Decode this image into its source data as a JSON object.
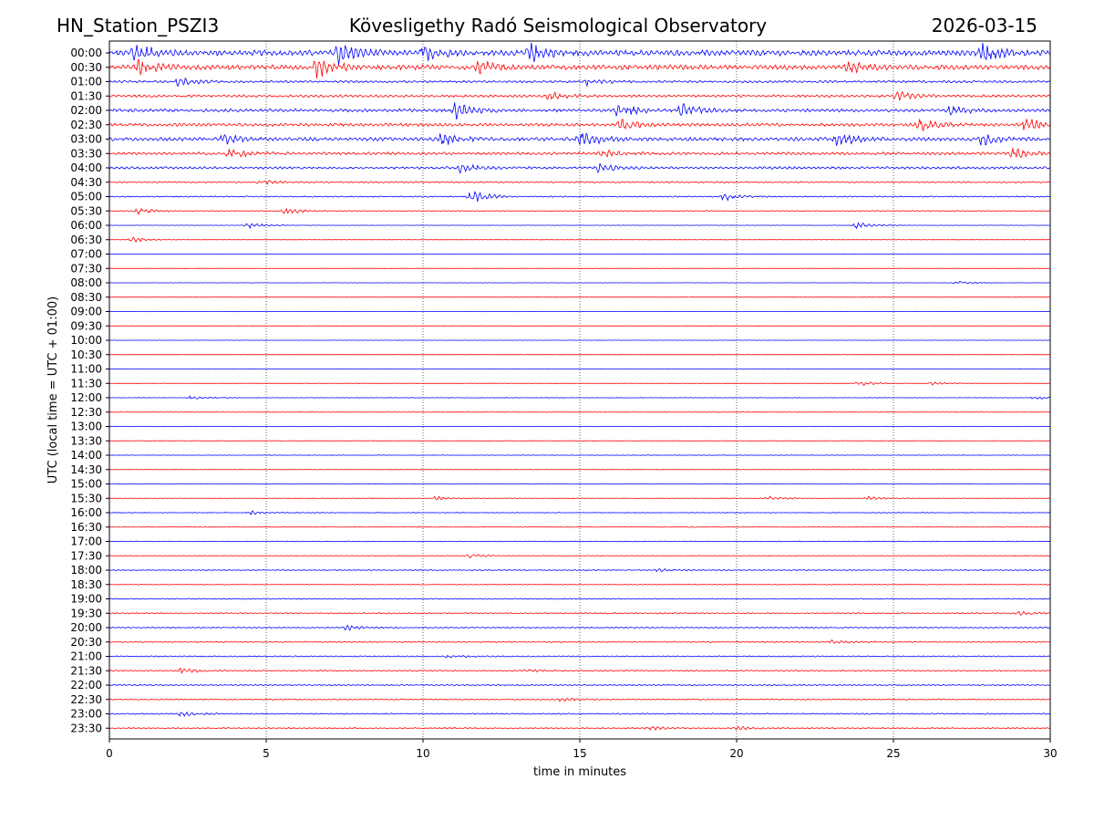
{
  "header": {
    "station": "HN_Station_PSZI3",
    "observatory": "Kövesligethy Radó Seismological Observatory",
    "date": "2026-03-15"
  },
  "chart_data": {
    "type": "line",
    "subtype": "seismic helicorder",
    "xlabel": "time in minutes",
    "ylabel": "UTC (local time = UTC + 01:00)",
    "xlim": [
      0,
      30
    ],
    "xticks": [
      0,
      5,
      10,
      15,
      20,
      25,
      30
    ],
    "vertical_grid": true,
    "series_colors": [
      "#0000ff",
      "#ff0000"
    ],
    "rows": [
      {
        "label": "00:00",
        "level": 1.0,
        "events": [
          [
            0.8,
            1.0
          ],
          [
            7.3,
            1.0
          ],
          [
            10.0,
            0.8
          ],
          [
            13.4,
            0.9
          ],
          [
            27.8,
            1.0
          ]
        ]
      },
      {
        "label": "00:30",
        "level": 0.85,
        "events": [
          [
            0.9,
            0.8
          ],
          [
            6.6,
            1.2
          ],
          [
            11.8,
            0.7
          ],
          [
            23.5,
            0.6
          ]
        ]
      },
      {
        "label": "01:00",
        "level": 0.4,
        "events": [
          [
            2.2,
            0.5
          ],
          [
            15.2,
            0.4
          ]
        ]
      },
      {
        "label": "01:30",
        "level": 0.45,
        "events": [
          [
            14.0,
            0.5
          ],
          [
            25.1,
            0.5
          ]
        ]
      },
      {
        "label": "02:00",
        "level": 0.55,
        "events": [
          [
            11.0,
            0.9
          ],
          [
            16.2,
            0.8
          ],
          [
            18.2,
            0.8
          ],
          [
            26.8,
            0.6
          ]
        ]
      },
      {
        "label": "02:30",
        "level": 0.55,
        "events": [
          [
            16.3,
            0.6
          ],
          [
            25.8,
            0.7
          ],
          [
            29.2,
            0.7
          ]
        ]
      },
      {
        "label": "03:00",
        "level": 0.65,
        "events": [
          [
            3.6,
            0.6
          ],
          [
            10.6,
            0.7
          ],
          [
            15.0,
            1.0
          ],
          [
            23.2,
            0.8
          ],
          [
            27.8,
            0.6
          ]
        ]
      },
      {
        "label": "03:30",
        "level": 0.5,
        "events": [
          [
            3.8,
            0.6
          ],
          [
            15.7,
            0.4
          ],
          [
            28.8,
            0.5
          ]
        ]
      },
      {
        "label": "04:00",
        "level": 0.45,
        "events": [
          [
            11.2,
            0.5
          ],
          [
            15.6,
            0.4
          ]
        ]
      },
      {
        "label": "04:30",
        "level": 0.25,
        "events": [
          [
            4.8,
            0.3
          ]
        ]
      },
      {
        "label": "05:00",
        "level": 0.22,
        "events": [
          [
            11.5,
            0.8
          ],
          [
            19.6,
            0.4
          ]
        ]
      },
      {
        "label": "05:30",
        "level": 0.15,
        "events": [
          [
            0.9,
            0.4
          ],
          [
            5.6,
            0.4
          ]
        ]
      },
      {
        "label": "06:00",
        "level": 0.05,
        "events": [
          [
            4.4,
            0.4
          ],
          [
            23.8,
            0.4
          ]
        ]
      },
      {
        "label": "06:30",
        "level": 0.06,
        "events": [
          [
            0.7,
            0.3
          ]
        ]
      },
      {
        "label": "07:00",
        "level": 0.05,
        "events": []
      },
      {
        "label": "07:30",
        "level": 0.05,
        "events": []
      },
      {
        "label": "08:00",
        "level": 0.05,
        "events": [
          [
            27.0,
            0.2
          ]
        ]
      },
      {
        "label": "08:30",
        "level": 0.05,
        "events": []
      },
      {
        "label": "09:00",
        "level": 0.05,
        "events": []
      },
      {
        "label": "09:30",
        "level": 0.05,
        "events": []
      },
      {
        "label": "10:00",
        "level": 0.05,
        "events": []
      },
      {
        "label": "10:30",
        "level": 0.05,
        "events": []
      },
      {
        "label": "11:00",
        "level": 0.06,
        "events": []
      },
      {
        "label": "11:30",
        "level": 0.08,
        "events": [
          [
            23.9,
            0.3
          ],
          [
            26.2,
            0.2
          ]
        ]
      },
      {
        "label": "12:00",
        "level": 0.08,
        "events": [
          [
            2.6,
            0.2
          ],
          [
            29.5,
            0.2
          ]
        ]
      },
      {
        "label": "12:30",
        "level": 0.08,
        "events": []
      },
      {
        "label": "13:00",
        "level": 0.08,
        "events": []
      },
      {
        "label": "13:30",
        "level": 0.08,
        "events": []
      },
      {
        "label": "14:00",
        "level": 0.08,
        "events": []
      },
      {
        "label": "14:30",
        "level": 0.08,
        "events": []
      },
      {
        "label": "15:00",
        "level": 0.08,
        "events": []
      },
      {
        "label": "15:30",
        "level": 0.1,
        "events": [
          [
            10.4,
            0.2
          ],
          [
            21.0,
            0.2
          ],
          [
            24.2,
            0.2
          ]
        ]
      },
      {
        "label": "16:00",
        "level": 0.1,
        "events": [
          [
            4.5,
            0.2
          ]
        ]
      },
      {
        "label": "16:30",
        "level": 0.1,
        "events": []
      },
      {
        "label": "17:00",
        "level": 0.12,
        "events": []
      },
      {
        "label": "17:30",
        "level": 0.12,
        "events": [
          [
            11.5,
            0.2
          ]
        ]
      },
      {
        "label": "18:00",
        "level": 0.15,
        "events": [
          [
            17.5,
            0.2
          ]
        ]
      },
      {
        "label": "18:30",
        "level": 0.15,
        "events": []
      },
      {
        "label": "19:00",
        "level": 0.18,
        "events": []
      },
      {
        "label": "19:30",
        "level": 0.2,
        "events": [
          [
            29.0,
            0.2
          ]
        ]
      },
      {
        "label": "20:00",
        "level": 0.2,
        "events": [
          [
            7.5,
            0.3
          ]
        ]
      },
      {
        "label": "20:30",
        "level": 0.2,
        "events": [
          [
            23.0,
            0.2
          ]
        ]
      },
      {
        "label": "21:00",
        "level": 0.2,
        "events": [
          [
            10.8,
            0.2
          ]
        ]
      },
      {
        "label": "21:30",
        "level": 0.22,
        "events": [
          [
            2.3,
            0.3
          ],
          [
            13.3,
            0.2
          ]
        ]
      },
      {
        "label": "22:00",
        "level": 0.2,
        "events": []
      },
      {
        "label": "22:30",
        "level": 0.2,
        "events": [
          [
            14.4,
            0.2
          ]
        ]
      },
      {
        "label": "23:00",
        "level": 0.22,
        "events": [
          [
            2.3,
            0.3
          ]
        ]
      },
      {
        "label": "23:30",
        "level": 0.22,
        "events": [
          [
            17.2,
            0.2
          ],
          [
            20.0,
            0.2
          ]
        ]
      }
    ]
  }
}
